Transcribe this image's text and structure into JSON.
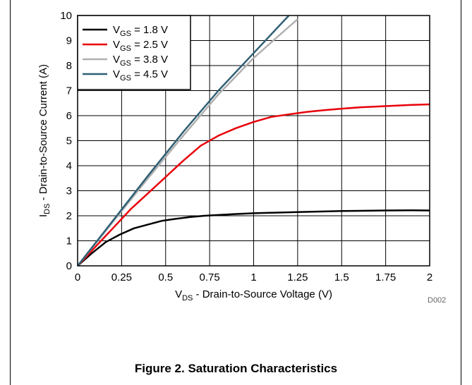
{
  "chart_data": {
    "type": "line",
    "xlabel": {
      "main": "V",
      "sub": "DS",
      "rest": " - Drain-to-Source Voltage (V)"
    },
    "ylabel": {
      "main": "I",
      "sub": "DS",
      "rest": " - Drain-to-Source Current (A)"
    },
    "xlim": [
      0,
      2
    ],
    "ylim": [
      0,
      10
    ],
    "xticks": [
      "0",
      "0.25",
      "0.5",
      "0.75",
      "1",
      "1.25",
      "1.5",
      "1.75",
      "2"
    ],
    "yticks": [
      "0",
      "1",
      "2",
      "3",
      "4",
      "5",
      "6",
      "7",
      "8",
      "9",
      "10"
    ],
    "grid": true,
    "legend_position": "top-left",
    "series": [
      {
        "name": "V_GS = 1.8 V",
        "label_main": "V",
        "label_sub": "GS",
        "label_rest": " = 1.8 V",
        "color": "#000000",
        "x": [
          0,
          0.08,
          0.16,
          0.24,
          0.32,
          0.4,
          0.48,
          0.56,
          0.64,
          0.72,
          0.8,
          0.9,
          1.0,
          1.1,
          1.25,
          1.5,
          1.75,
          1.9,
          2.0
        ],
        "y": [
          0,
          0.5,
          0.95,
          1.25,
          1.5,
          1.65,
          1.8,
          1.88,
          1.95,
          2.0,
          2.03,
          2.07,
          2.1,
          2.12,
          2.15,
          2.19,
          2.21,
          2.22,
          2.21
        ]
      },
      {
        "name": "V_GS = 2.5 V",
        "label_main": "V",
        "label_sub": "GS",
        "label_rest": " = 2.5 V",
        "color": "#e8000b",
        "x": [
          0,
          0.1,
          0.2,
          0.3,
          0.4,
          0.5,
          0.6,
          0.7,
          0.8,
          0.9,
          1.0,
          1.1,
          1.2,
          1.3,
          1.4,
          1.5,
          1.6,
          1.75,
          1.9,
          2.0
        ],
        "y": [
          0,
          0.75,
          1.5,
          2.25,
          2.9,
          3.55,
          4.2,
          4.8,
          5.2,
          5.5,
          5.75,
          5.95,
          6.05,
          6.15,
          6.22,
          6.28,
          6.33,
          6.38,
          6.43,
          6.45
        ]
      },
      {
        "name": "V_GS = 3.8 V",
        "label_main": "V",
        "label_sub": "GS",
        "label_rest": " = 3.8 V",
        "color": "#b0b0b0",
        "x": [
          0,
          0.2,
          0.4,
          0.6,
          0.8,
          1.0,
          1.2,
          1.25
        ],
        "y": [
          0,
          1.75,
          3.5,
          5.2,
          6.85,
          8.3,
          9.55,
          9.85
        ]
      },
      {
        "name": "V_GS = 4.5 V",
        "label_main": "V",
        "label_sub": "GS",
        "label_rest": " = 4.5 V",
        "color": "#2f5f74",
        "x": [
          0,
          0.2,
          0.4,
          0.6,
          0.8,
          1.0,
          1.2
        ],
        "y": [
          0,
          1.8,
          3.6,
          5.35,
          7.0,
          8.5,
          10.0
        ]
      }
    ]
  },
  "figure_code": "D002",
  "caption": "Figure 2. Saturation Characteristics"
}
